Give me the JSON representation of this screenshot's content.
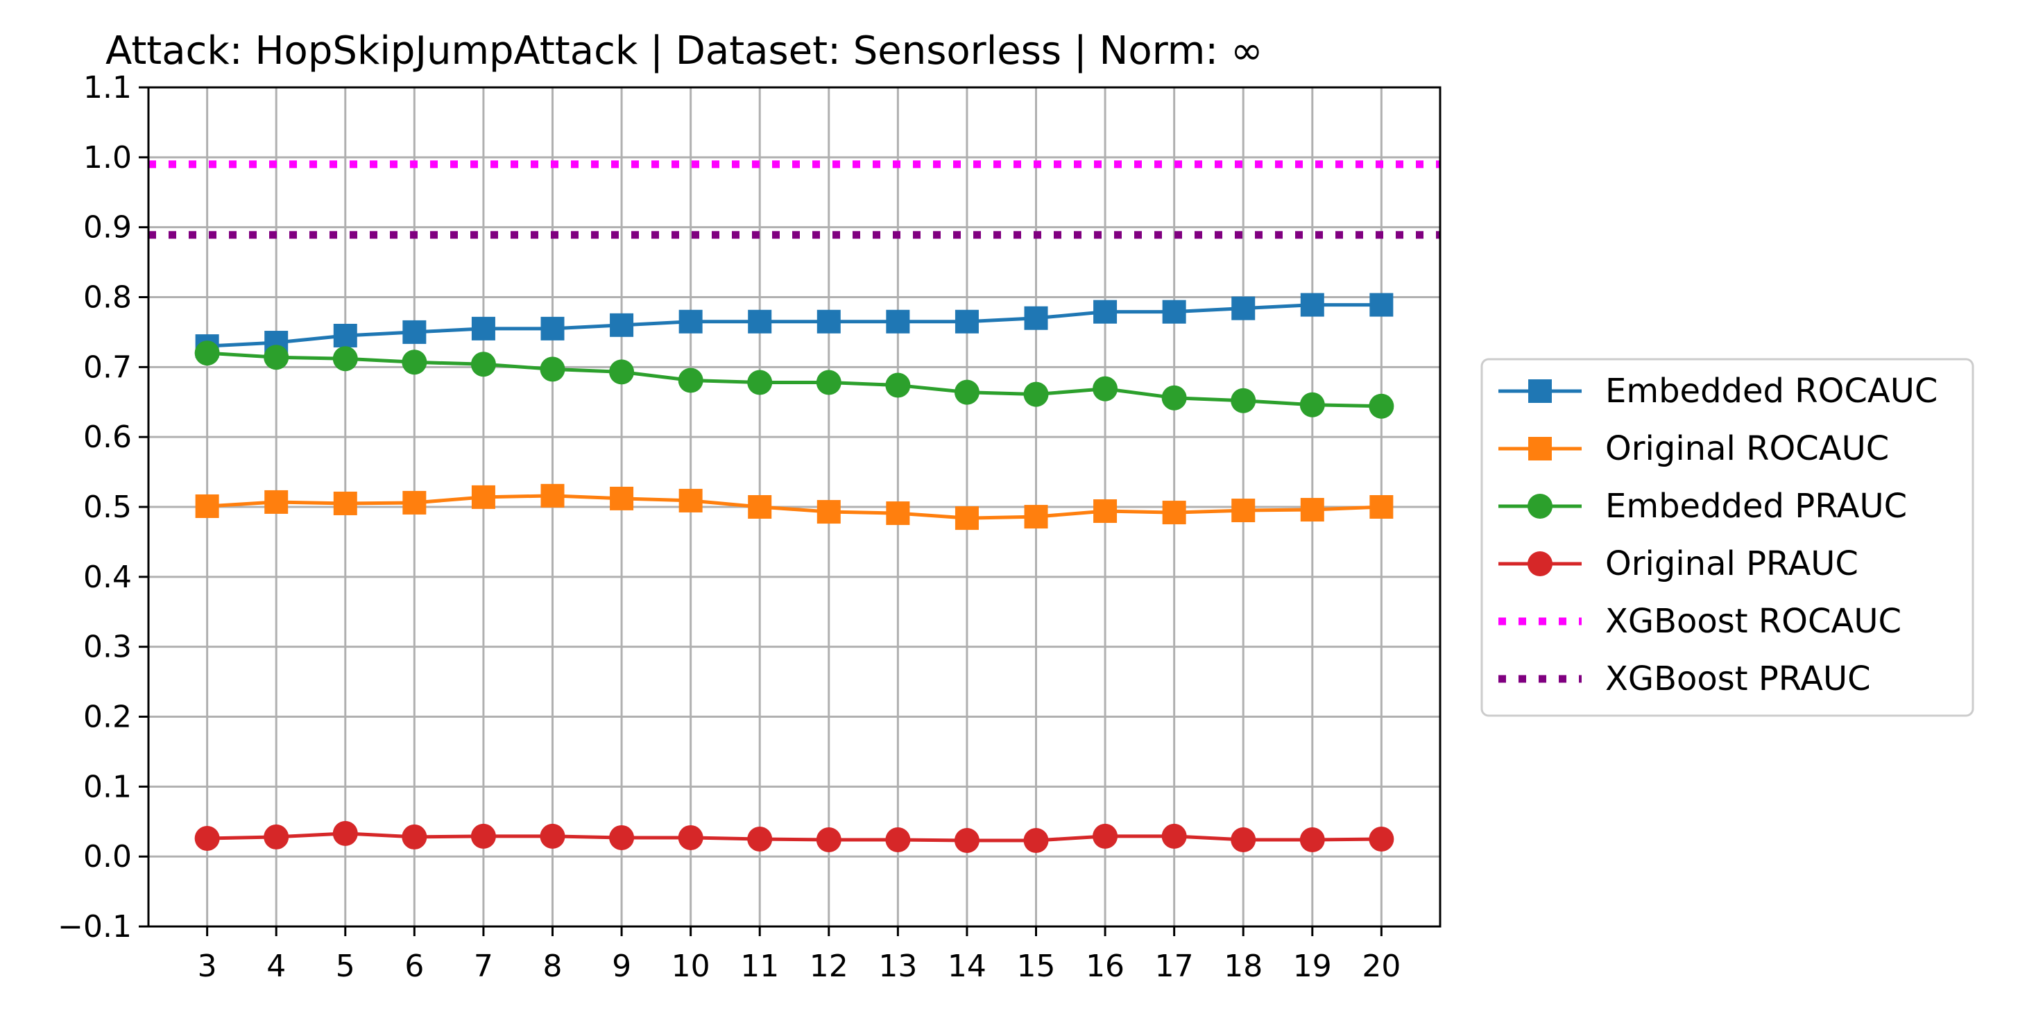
{
  "chart_data": {
    "type": "line",
    "title": "Attack: HopSkipJumpAttack | Dataset: Sensorless | Norm: ∞",
    "xlabel": "",
    "ylabel": "",
    "x": [
      3,
      4,
      5,
      6,
      7,
      8,
      9,
      10,
      11,
      12,
      13,
      14,
      15,
      16,
      17,
      18,
      19,
      20
    ],
    "xlim": [
      2.15,
      20.85
    ],
    "ylim": [
      -0.1,
      1.1
    ],
    "yticks": [
      -0.1,
      0.0,
      0.1,
      0.2,
      0.3,
      0.4,
      0.5,
      0.6,
      0.7,
      0.8,
      0.9,
      1.0,
      1.1
    ],
    "ytick_labels": [
      "−0.1",
      "0.0",
      "0.1",
      "0.2",
      "0.3",
      "0.4",
      "0.5",
      "0.6",
      "0.7",
      "0.8",
      "0.9",
      "1.0",
      "1.1"
    ],
    "grid": true,
    "legend_position": "outside-right",
    "series": [
      {
        "name": "Embedded ROCAUC",
        "color": "#1f77b4",
        "marker": "square",
        "style": "solid",
        "values": [
          0.73,
          0.735,
          0.745,
          0.75,
          0.755,
          0.755,
          0.76,
          0.765,
          0.765,
          0.765,
          0.765,
          0.765,
          0.77,
          0.779,
          0.779,
          0.784,
          0.789,
          0.789
        ]
      },
      {
        "name": "Original ROCAUC",
        "color": "#ff7f0e",
        "marker": "square",
        "style": "solid",
        "values": [
          0.501,
          0.507,
          0.505,
          0.506,
          0.514,
          0.516,
          0.512,
          0.509,
          0.5,
          0.493,
          0.491,
          0.484,
          0.486,
          0.494,
          0.492,
          0.495,
          0.496,
          0.5
        ]
      },
      {
        "name": "Embedded PRAUC",
        "color": "#2ca02c",
        "marker": "circle",
        "style": "solid",
        "values": [
          0.72,
          0.714,
          0.712,
          0.707,
          0.704,
          0.697,
          0.693,
          0.681,
          0.678,
          0.678,
          0.674,
          0.664,
          0.661,
          0.669,
          0.656,
          0.652,
          0.646,
          0.644
        ]
      },
      {
        "name": "Original PRAUC",
        "color": "#d62728",
        "marker": "circle",
        "style": "solid",
        "values": [
          0.026,
          0.028,
          0.033,
          0.028,
          0.029,
          0.029,
          0.027,
          0.027,
          0.025,
          0.024,
          0.024,
          0.023,
          0.023,
          0.029,
          0.029,
          0.024,
          0.024,
          0.025
        ]
      },
      {
        "name": "XGBoost ROCAUC",
        "color": "#ff00ff",
        "marker": "none",
        "style": "dotted",
        "constant": 0.99
      },
      {
        "name": "XGBoost PRAUC",
        "color": "#800080",
        "marker": "none",
        "style": "dotted",
        "constant": 0.889
      }
    ]
  }
}
